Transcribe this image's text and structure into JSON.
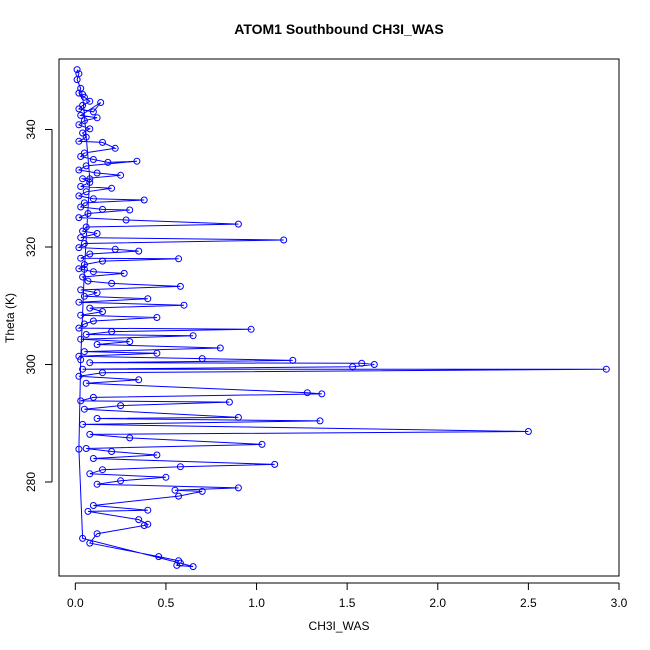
{
  "chart_data": {
    "type": "line",
    "title": "ATOM1 Southbound CH3I_WAS",
    "xlabel": "CH3I_WAS",
    "ylabel": "Theta (K)",
    "xlim": [
      -0.09,
      3.0
    ],
    "ylim": [
      264,
      352
    ],
    "x_ticks": [
      "0.0",
      "0.5",
      "1.0",
      "1.5",
      "2.0",
      "2.5",
      "3.0"
    ],
    "y_ticks": [
      "280",
      "300",
      "320",
      "340"
    ],
    "grid": false,
    "series": [
      {
        "color": "#0000ff",
        "marker": "open-circle",
        "points": [
          [
            0.01,
            350.2
          ],
          [
            0.02,
            349.5
          ],
          [
            0.01,
            348.5
          ],
          [
            0.03,
            347.0
          ],
          [
            0.02,
            346.2
          ],
          [
            0.05,
            345.5
          ],
          [
            0.08,
            344.8
          ],
          [
            0.04,
            344.1
          ],
          [
            0.02,
            343.5
          ],
          [
            0.1,
            343.0
          ],
          [
            0.14,
            344.6
          ],
          [
            0.03,
            342.4
          ],
          [
            0.12,
            342.0
          ],
          [
            0.05,
            341.5
          ],
          [
            0.02,
            340.8
          ],
          [
            0.08,
            340.1
          ],
          [
            0.04,
            339.4
          ],
          [
            0.06,
            338.7
          ],
          [
            0.02,
            338.0
          ],
          [
            0.15,
            337.8
          ],
          [
            0.22,
            336.8
          ],
          [
            0.05,
            336.0
          ],
          [
            0.03,
            335.4
          ],
          [
            0.1,
            334.9
          ],
          [
            0.18,
            334.4
          ],
          [
            0.34,
            334.6
          ],
          [
            0.06,
            333.8
          ],
          [
            0.02,
            333.1
          ],
          [
            0.12,
            332.6
          ],
          [
            0.25,
            332.2
          ],
          [
            0.04,
            331.6
          ],
          [
            0.08,
            331.0
          ],
          [
            0.03,
            330.3
          ],
          [
            0.2,
            330.0
          ],
          [
            0.06,
            329.4
          ],
          [
            0.02,
            328.7
          ],
          [
            0.1,
            328.2
          ],
          [
            0.38,
            328.0
          ],
          [
            0.05,
            327.5
          ],
          [
            0.03,
            326.8
          ],
          [
            0.15,
            326.4
          ],
          [
            0.3,
            326.3
          ],
          [
            0.07,
            325.7
          ],
          [
            0.02,
            325.0
          ],
          [
            0.28,
            324.6
          ],
          [
            0.9,
            323.9
          ],
          [
            0.06,
            323.4
          ],
          [
            0.04,
            322.7
          ],
          [
            0.12,
            322.3
          ],
          [
            0.03,
            321.6
          ],
          [
            1.15,
            321.2
          ],
          [
            0.05,
            320.6
          ],
          [
            0.02,
            319.9
          ],
          [
            0.22,
            319.6
          ],
          [
            0.35,
            319.3
          ],
          [
            0.08,
            318.8
          ],
          [
            0.03,
            318.1
          ],
          [
            0.57,
            318.0
          ],
          [
            0.15,
            317.6
          ],
          [
            0.05,
            317.0
          ],
          [
            0.02,
            316.3
          ],
          [
            0.1,
            315.8
          ],
          [
            0.27,
            315.5
          ],
          [
            0.04,
            314.9
          ],
          [
            0.07,
            314.2
          ],
          [
            0.2,
            313.8
          ],
          [
            0.58,
            313.3
          ],
          [
            0.03,
            312.7
          ],
          [
            0.12,
            312.2
          ],
          [
            0.05,
            311.6
          ],
          [
            0.4,
            311.2
          ],
          [
            0.02,
            310.6
          ],
          [
            0.6,
            310.1
          ],
          [
            0.08,
            309.6
          ],
          [
            0.15,
            309.0
          ],
          [
            0.03,
            308.4
          ],
          [
            0.45,
            308.0
          ],
          [
            0.1,
            307.4
          ],
          [
            0.05,
            306.9
          ],
          [
            0.02,
            306.2
          ],
          [
            0.97,
            306.0
          ],
          [
            0.2,
            305.6
          ],
          [
            0.06,
            305.1
          ],
          [
            0.65,
            304.9
          ],
          [
            0.03,
            304.3
          ],
          [
            0.3,
            303.9
          ],
          [
            0.12,
            303.4
          ],
          [
            0.8,
            302.8
          ],
          [
            0.05,
            302.2
          ],
          [
            0.45,
            301.9
          ],
          [
            0.02,
            301.4
          ],
          [
            0.7,
            301.0
          ],
          [
            1.2,
            300.7
          ],
          [
            0.08,
            300.3
          ],
          [
            1.58,
            300.2
          ],
          [
            1.65,
            300.0
          ],
          [
            1.53,
            299.6
          ],
          [
            0.04,
            299.2
          ],
          [
            2.93,
            299.2
          ],
          [
            0.15,
            298.6
          ],
          [
            0.02,
            298.0
          ],
          [
            0.35,
            297.4
          ],
          [
            0.06,
            296.8
          ],
          [
            1.28,
            295.2
          ],
          [
            1.36,
            295.0
          ],
          [
            0.1,
            294.4
          ],
          [
            0.03,
            293.8
          ],
          [
            0.85,
            293.6
          ],
          [
            0.25,
            293.0
          ],
          [
            0.05,
            292.4
          ],
          [
            0.9,
            291.0
          ],
          [
            0.12,
            290.8
          ],
          [
            1.35,
            290.4
          ],
          [
            0.04,
            289.8
          ],
          [
            2.5,
            288.6
          ],
          [
            0.08,
            288.1
          ],
          [
            0.3,
            287.5
          ],
          [
            1.03,
            286.4
          ],
          [
            0.06,
            285.7
          ],
          [
            0.2,
            285.2
          ],
          [
            0.45,
            284.6
          ],
          [
            0.1,
            284.0
          ],
          [
            1.1,
            283.0
          ],
          [
            0.58,
            282.6
          ],
          [
            0.15,
            282.1
          ],
          [
            0.08,
            281.4
          ],
          [
            0.5,
            280.8
          ],
          [
            0.25,
            280.2
          ],
          [
            0.12,
            279.6
          ],
          [
            0.9,
            279.0
          ],
          [
            0.55,
            278.6
          ],
          [
            0.7,
            278.4
          ],
          [
            0.57,
            277.6
          ],
          [
            0.1,
            276.0
          ],
          [
            0.4,
            275.2
          ],
          [
            0.07,
            275.0
          ],
          [
            0.35,
            273.6
          ],
          [
            0.4,
            272.8
          ],
          [
            0.38,
            272.6
          ],
          [
            0.12,
            271.2
          ],
          [
            0.08,
            269.6
          ],
          [
            0.46,
            267.3
          ],
          [
            0.57,
            266.6
          ],
          [
            0.56,
            265.8
          ],
          [
            0.65,
            265.6
          ],
          [
            0.58,
            266.2
          ],
          [
            0.04,
            270.4
          ],
          [
            0.02,
            285.6
          ],
          [
            0.03,
            300.8
          ],
          [
            0.05,
            316.2
          ],
          [
            0.08,
            331.6
          ],
          [
            0.04,
            346.0
          ]
        ]
      }
    ]
  }
}
